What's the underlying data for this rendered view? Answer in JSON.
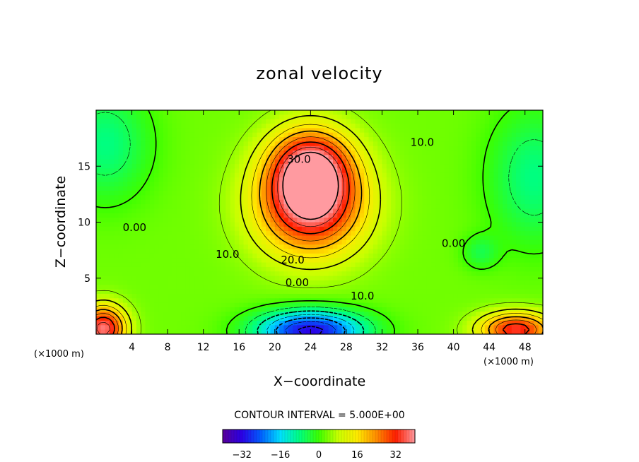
{
  "chart_data": {
    "type": "heatmap",
    "title": "zonal velocity",
    "xlabel": "X−coordinate",
    "ylabel": "Z−coordinate",
    "x_unit": "(×1000 m)",
    "x_unit_right": "(×1000 m)",
    "xlim": [
      0,
      50
    ],
    "ylim": [
      0,
      20
    ],
    "x_ticks": [
      4,
      8,
      12,
      16,
      20,
      24,
      28,
      32,
      36,
      40,
      44,
      48
    ],
    "y_ticks": [
      5,
      10,
      15
    ],
    "contour_interval_text": "CONTOUR INTERVAL = 5.000E+00",
    "contour_interval": 5.0,
    "contour_labels": [
      {
        "text": "30.0",
        "x": 22.7,
        "y": 15.3
      },
      {
        "text": "10.0",
        "x": 36.5,
        "y": 16.8
      },
      {
        "text": "0.00",
        "x": 4.3,
        "y": 9.2
      },
      {
        "text": "10.0",
        "x": 14.7,
        "y": 6.8
      },
      {
        "text": "20.0",
        "x": 22.0,
        "y": 6.3
      },
      {
        "text": "0.00",
        "x": 40.0,
        "y": 7.8
      },
      {
        "text": "0.00",
        "x": 22.5,
        "y": 4.3
      },
      {
        "text": "10.0",
        "x": 29.8,
        "y": 3.1
      }
    ],
    "color_scale": {
      "min": -40,
      "max": 40,
      "ticks": [
        -32,
        -16,
        0,
        16,
        32
      ],
      "tick_labels": [
        "−32",
        "−16",
        "0",
        "16",
        "32"
      ],
      "colors": [
        "#5a009a",
        "#2a00e6",
        "#0060ff",
        "#00e0ff",
        "#00ff80",
        "#3cff00",
        "#c8ff00",
        "#ffea00",
        "#ff8c00",
        "#ff1e00",
        "#ff9aa0"
      ]
    },
    "field_features": [
      {
        "x": 24,
        "y": 11.5,
        "value": 38,
        "sx": 6,
        "sy": 4.5
      },
      {
        "x": 24,
        "y": 15,
        "value": 32,
        "sx": 4.5,
        "sy": 3.5
      },
      {
        "x": 24,
        "y": 0.3,
        "value": -32,
        "sx": 6,
        "sy": 1.8
      },
      {
        "x": 0.8,
        "y": 0.5,
        "value": 38,
        "sx": 2.5,
        "sy": 2
      },
      {
        "x": 47,
        "y": 0.4,
        "value": 34,
        "sx": 4,
        "sy": 1.5
      },
      {
        "x": 1,
        "y": 17,
        "value": -8,
        "sx": 5,
        "sy": 5
      },
      {
        "x": 49,
        "y": 14,
        "value": -8,
        "sx": 5,
        "sy": 6
      },
      {
        "x": 43,
        "y": 7.3,
        "value": -4,
        "sx": 2,
        "sy": 1.5
      }
    ],
    "background_value": 3
  }
}
